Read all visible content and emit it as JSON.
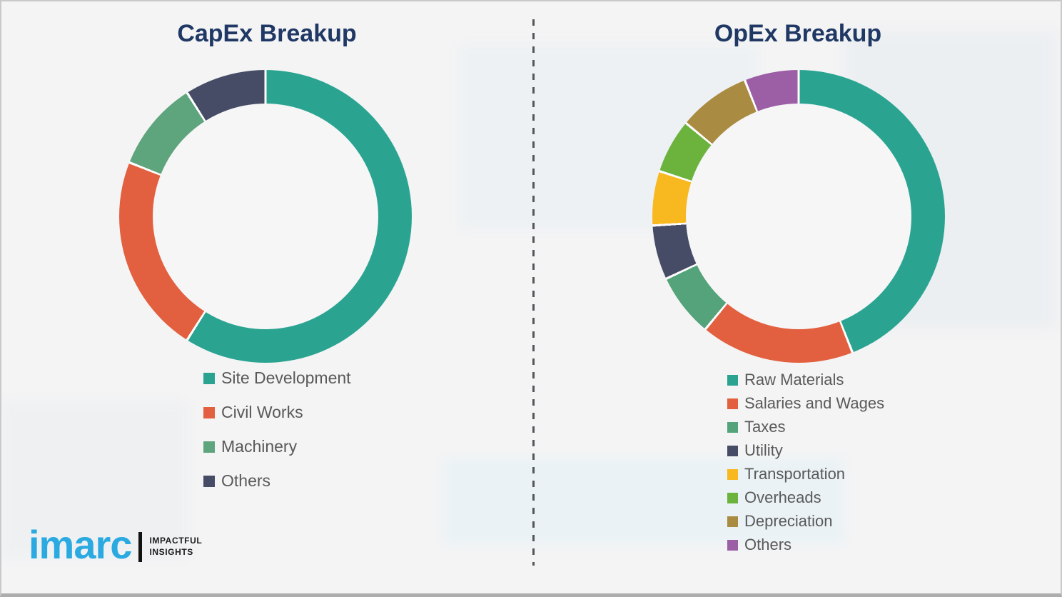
{
  "background_color": "#f4f4f5",
  "title_color": "#1f3864",
  "legend_text_color": "#595959",
  "divider": {
    "style": "dashed",
    "color": "#55565a"
  },
  "chart_data": [
    {
      "type": "pie",
      "donut": true,
      "title": "CapEx Breakup",
      "labels": [
        "Site Development",
        "Civil Works",
        "Machinery",
        "Others"
      ],
      "values": [
        59,
        22,
        10,
        9
      ],
      "colors": [
        "#2aa491",
        "#e2603f",
        "#5ea47c",
        "#474c66"
      ],
      "legend_position": "below-left",
      "start_angle_deg": 0,
      "direction": "clockwise"
    },
    {
      "type": "pie",
      "donut": true,
      "title": "OpEx Breakup",
      "labels": [
        "Raw Materials",
        "Salaries and Wages",
        "Taxes",
        "Utility",
        "Transportation",
        "Overheads",
        "Depreciation",
        "Others"
      ],
      "values": [
        44,
        17,
        7,
        6,
        6,
        6,
        8,
        6
      ],
      "colors": [
        "#2aa491",
        "#e2603f",
        "#55a37b",
        "#474c66",
        "#f8b820",
        "#6cb33e",
        "#a98c42",
        "#9c5fa5"
      ],
      "legend_position": "below-left",
      "start_angle_deg": 0,
      "direction": "clockwise"
    }
  ],
  "logo": {
    "brand": "imarc",
    "brand_color": "#2baae1",
    "tagline": [
      "IMPACTFUL",
      "INSIGHTS"
    ]
  }
}
